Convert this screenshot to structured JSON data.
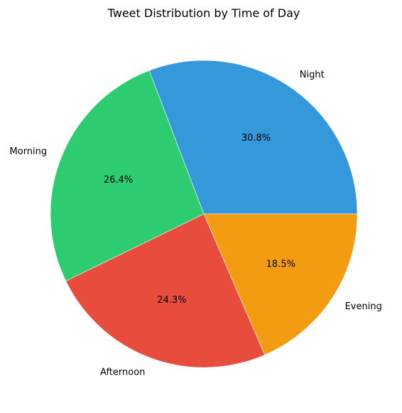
{
  "chart_data": {
    "type": "pie",
    "title": "Tweet Distribution by Time of Day",
    "start_angle_deg": 0,
    "direction": "counterclockwise",
    "slices": [
      {
        "label": "Night",
        "value": 30.8,
        "pct_label": "30.8%",
        "color": "#3498db"
      },
      {
        "label": "Morning",
        "value": 26.4,
        "pct_label": "26.4%",
        "color": "#2ecc71"
      },
      {
        "label": "Afternoon",
        "value": 24.3,
        "pct_label": "24.3%",
        "color": "#e74c3c"
      },
      {
        "label": "Evening",
        "value": 18.5,
        "pct_label": "18.5%",
        "color": "#f39c12"
      }
    ]
  }
}
